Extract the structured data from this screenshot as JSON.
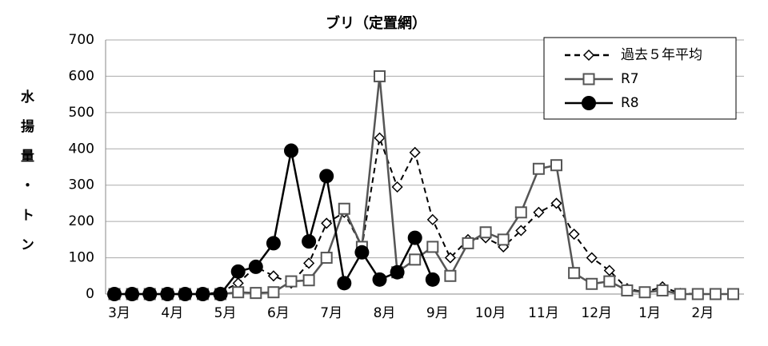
{
  "chart_data": {
    "type": "line",
    "title": "ブリ（定置網）",
    "y_label": "水揚量・トン",
    "categories": [
      "3月",
      null,
      null,
      "4月",
      null,
      null,
      "5月",
      null,
      null,
      "6月",
      null,
      null,
      "7月",
      null,
      null,
      "8月",
      null,
      null,
      "9月",
      null,
      null,
      "10月",
      null,
      null,
      "11月",
      null,
      null,
      "12月",
      null,
      null,
      "1月",
      null,
      null,
      "2月",
      null,
      null
    ],
    "series": [
      {
        "name": "過去５年平均",
        "color": "#000000",
        "dash": true,
        "marker": "diamond",
        "values": [
          0,
          0,
          0,
          0,
          0,
          0,
          5,
          30,
          75,
          50,
          30,
          85,
          195,
          225,
          130,
          430,
          295,
          390,
          205,
          100,
          150,
          155,
          130,
          175,
          225,
          250,
          165,
          100,
          65,
          15,
          5,
          20,
          2,
          0,
          0,
          0
        ]
      },
      {
        "name": "R7",
        "color": "#555555",
        "dash": false,
        "marker": "square",
        "values": [
          0,
          0,
          0,
          0,
          0,
          0,
          0,
          5,
          3,
          5,
          35,
          38,
          100,
          235,
          130,
          600,
          60,
          95,
          130,
          50,
          140,
          170,
          150,
          225,
          345,
          355,
          58,
          28,
          35,
          10,
          5,
          10,
          0,
          0,
          0,
          0
        ]
      },
      {
        "name": "R8",
        "color": "#000000",
        "dash": false,
        "marker": "circle",
        "values": [
          0,
          0,
          0,
          0,
          0,
          0,
          0,
          62,
          75,
          140,
          395,
          145,
          325,
          30,
          115,
          40,
          60,
          155,
          40,
          null,
          null,
          null,
          null,
          null,
          null,
          null,
          null,
          null,
          null,
          null,
          null,
          null,
          null,
          null,
          null,
          null
        ]
      }
    ],
    "ylim": [
      0,
      700
    ],
    "yticks": [
      0,
      100,
      200,
      300,
      400,
      500,
      600,
      700
    ],
    "grid": true,
    "legend": "top-right"
  }
}
